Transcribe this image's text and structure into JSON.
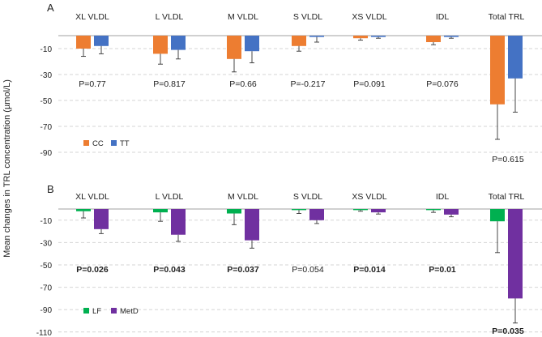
{
  "figure": {
    "ylabel": "Mean changes in TRL concentration (µmol/L)"
  },
  "chart_data": [
    {
      "type": "bar",
      "panel": "A",
      "categories": [
        "XL VLDL",
        "L VLDL",
        "M VLDL",
        "S VLDL",
        "XS VLDL",
        "IDL",
        "Total TRL"
      ],
      "series": [
        {
          "name": "CC",
          "color": "#ed7d31",
          "values": [
            -10,
            -14,
            -18,
            -8,
            -2,
            -5,
            -53
          ],
          "errors": [
            6,
            8,
            10,
            4,
            1.5,
            2,
            27
          ]
        },
        {
          "name": "TT",
          "color": "#4472c4",
          "values": [
            -8,
            -11,
            -12,
            -1,
            -1,
            -1,
            -33
          ],
          "errors": [
            6,
            7,
            9,
            4,
            1,
            1,
            26
          ]
        }
      ],
      "pvalues": [
        "P=0.77",
        "P=0.817",
        "P=0.66",
        "P=-0.217",
        "P=0.091",
        "P=0.076",
        "P=0.615"
      ],
      "pvalues_bold": [
        false,
        false,
        false,
        false,
        false,
        false,
        false
      ],
      "ylim": [
        -100,
        0
      ],
      "yticks": [
        -10,
        -30,
        -50,
        -70,
        -90
      ],
      "grid": true,
      "legend": "bottom-left"
    },
    {
      "type": "bar",
      "panel": "B",
      "categories": [
        "XL VLDL",
        "L VLDL",
        "M VLDL",
        "S VLDL",
        "XS VLDL",
        "IDL",
        "Total TRL"
      ],
      "series": [
        {
          "name": "LF",
          "color": "#00b050",
          "values": [
            -2,
            -3,
            -4,
            -1,
            -1,
            -1,
            -11
          ],
          "errors": [
            6,
            8,
            10,
            3,
            1,
            2,
            28
          ]
        },
        {
          "name": "MetD",
          "color": "#7030a0",
          "values": [
            -18,
            -23,
            -28,
            -10,
            -3,
            -5,
            -80
          ],
          "errors": [
            4,
            6,
            7,
            3,
            1.5,
            2,
            22
          ]
        }
      ],
      "pvalues": [
        "P=0.026",
        "P=0.043",
        "P=0.037",
        "P=0.054",
        "P=0.014",
        "P=0.01",
        "P=0.035"
      ],
      "pvalues_bold": [
        true,
        true,
        true,
        false,
        true,
        true,
        true
      ],
      "ylim": [
        -110,
        0
      ],
      "yticks": [
        -10,
        -30,
        -50,
        -70,
        -90,
        -110
      ],
      "grid": true,
      "legend": "bottom-left"
    }
  ]
}
